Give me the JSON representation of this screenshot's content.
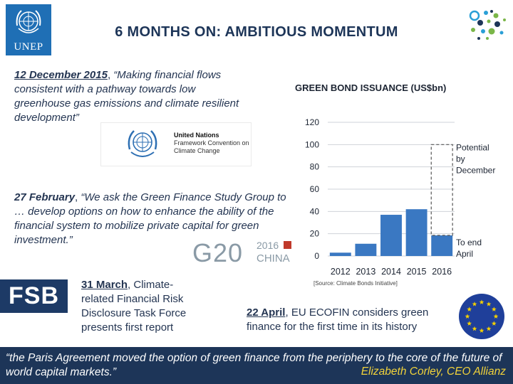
{
  "header": {
    "logo_text": "UNEP",
    "title": "6 MONTHS ON: AMBITIOUS MOMENTUM"
  },
  "quote1": {
    "date": "12 December 2015",
    "separator": ", ",
    "text": "“Making financial flows consistent with a pathway towards low greenhouse gas emissions and climate resilient development”"
  },
  "unfccc_logo": {
    "line1": "United Nations",
    "line2": "Framework Convention on",
    "line3": "Climate Change"
  },
  "quote2": {
    "date": "27 February",
    "separator": ", ",
    "text": "“We ask the Green Finance Study Group to …  develop options on how to enhance the ability of the financial system to mobilize private capital for green investment.”"
  },
  "g20_logo": {
    "main": "G20",
    "year": "2016",
    "country": "CHINA"
  },
  "fsb": {
    "logo_text": "FSB",
    "date": "31 March",
    "separator": ", ",
    "text": "Climate-related Financial Risk Disclosure Task Force presents first report"
  },
  "ecofin": {
    "date": "22 April",
    "separator": ", ",
    "text": "EU ECOFIN considers green finance for the first time in its history"
  },
  "footer": {
    "quote": "“the Paris Agreement moved the option of green finance from the periphery to the core of the future of world capital markets.”",
    "attribution": "Elizabeth Corley, CEO  Allianz"
  },
  "colors": {
    "bar": "#3a78c2",
    "footer_bg": "#1d3558",
    "attribution": "#f1d23a",
    "unep_blue": "#1f6fb5"
  },
  "chart_data": {
    "type": "bar",
    "title": "GREEN BOND ISSUANCE (US$bn)",
    "categories": [
      "2012",
      "2013",
      "2014",
      "2015",
      "2016"
    ],
    "values": [
      3,
      11,
      37,
      42,
      18.5
    ],
    "potential_2016": 100,
    "ylim": [
      0,
      120
    ],
    "yticks": [
      0,
      20,
      40,
      60,
      80,
      100,
      120
    ],
    "annotations": {
      "potential": [
        "Potential",
        "by",
        "December"
      ],
      "to_end": [
        "To end",
        "April"
      ]
    },
    "source": "[Source: Climate Bonds Initiative]"
  }
}
